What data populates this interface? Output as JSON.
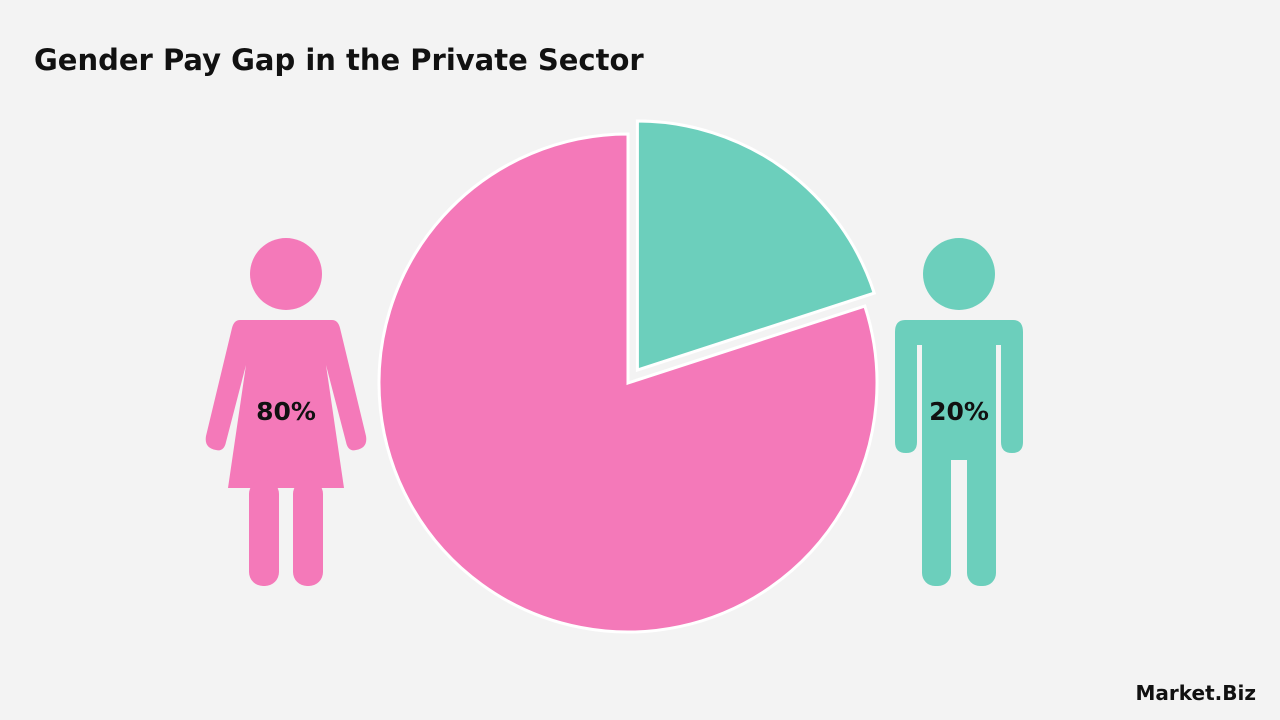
{
  "chart_data": {
    "type": "pie",
    "title": "Gender Pay Gap in the Private Sector",
    "values": [
      80,
      20
    ],
    "value_labels": [
      "80%",
      "20%"
    ],
    "colors": [
      "#f479b9",
      "#6ccfbc"
    ],
    "brand": "Market.Biz"
  }
}
